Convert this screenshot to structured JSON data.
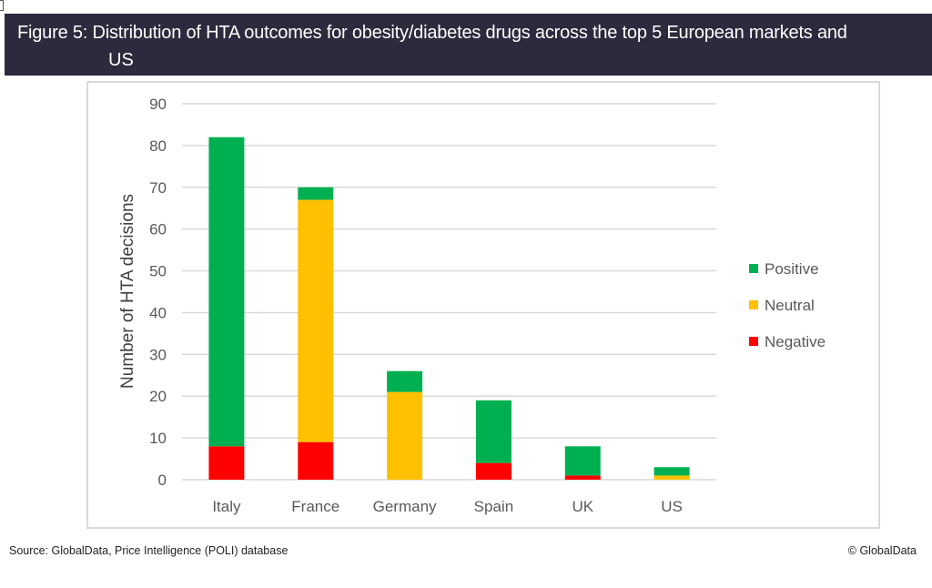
{
  "header": {
    "title_line1": "Figure 5: Distribution of HTA outcomes for obesity/diabetes drugs across the top 5 European markets and",
    "title_line2": "US"
  },
  "footer": {
    "source": "Source: GlobalData, Price Intelligence (POLI) database",
    "copyright": "© GlobalData"
  },
  "chart_data": {
    "type": "bar",
    "stacked": true,
    "title": "Distribution of HTA outcomes for obesity/diabetes drugs across the top 5 European markets and US",
    "xlabel": "",
    "ylabel": "Number of HTA decisions",
    "ylim": [
      0,
      90
    ],
    "yticks": [
      0,
      10,
      20,
      30,
      40,
      50,
      60,
      70,
      80,
      90
    ],
    "grid": true,
    "legend_position": "right",
    "categories": [
      "Italy",
      "France",
      "Germany",
      "Spain",
      "UK",
      "US"
    ],
    "series": [
      {
        "name": "Negative",
        "color": "#ff0000",
        "values": [
          8,
          9,
          0,
          4,
          1,
          0
        ]
      },
      {
        "name": "Neutral",
        "color": "#ffc000",
        "values": [
          0,
          58,
          21,
          0,
          0,
          1
        ]
      },
      {
        "name": "Positive",
        "color": "#00b050",
        "values": [
          74,
          3,
          5,
          15,
          7,
          2
        ]
      }
    ],
    "legend_order": [
      "Positive",
      "Neutral",
      "Negative"
    ]
  }
}
